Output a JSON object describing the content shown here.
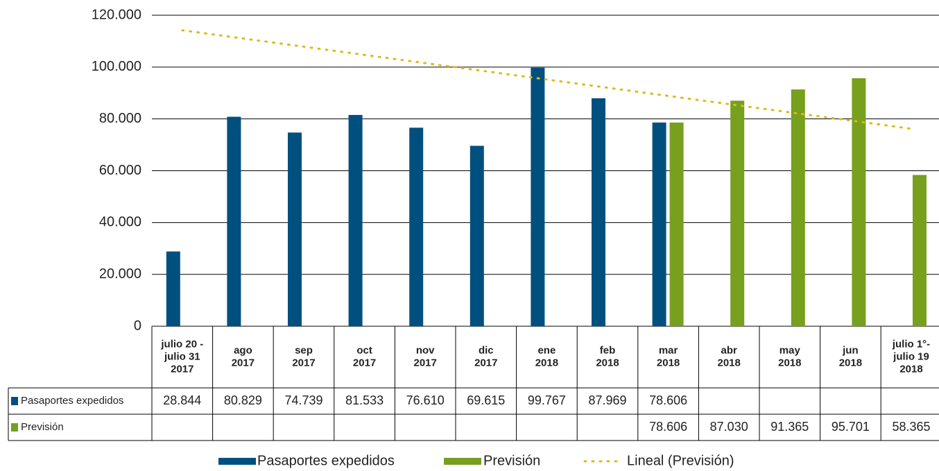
{
  "chart_data": {
    "type": "bar",
    "categories": [
      [
        "julio 20 -",
        "julio 31",
        "2017"
      ],
      [
        "ago",
        "2017"
      ],
      [
        "sep",
        "2017"
      ],
      [
        "oct",
        "2017"
      ],
      [
        "nov",
        "2017"
      ],
      [
        "dic",
        "2017"
      ],
      [
        "ene",
        "2018"
      ],
      [
        "feb",
        "2018"
      ],
      [
        "mar",
        "2018"
      ],
      [
        "abr",
        "2018"
      ],
      [
        "may",
        "2018"
      ],
      [
        "jun",
        "2018"
      ],
      [
        "julio 1°-",
        "julio 19",
        "2018"
      ]
    ],
    "series": [
      {
        "name": "Pasaportes expedidos",
        "color": "#00507f",
        "values": [
          28844,
          80829,
          74739,
          81533,
          76610,
          69615,
          99767,
          87969,
          78606,
          null,
          null,
          null,
          null
        ],
        "value_labels": [
          "28.844",
          "80.829",
          "74.739",
          "81.533",
          "76.610",
          "69.615",
          "99.767",
          "87.969",
          "78.606",
          null,
          null,
          null,
          null
        ]
      },
      {
        "name": "Previsión",
        "color": "#77a01e",
        "values": [
          null,
          null,
          null,
          null,
          null,
          null,
          null,
          null,
          78606,
          87030,
          91365,
          95701,
          58365
        ],
        "value_labels": [
          null,
          null,
          null,
          null,
          null,
          null,
          null,
          null,
          "78.606",
          "87.030",
          "91.365",
          "95.701",
          "58.365"
        ]
      }
    ],
    "trendline": {
      "name": "Lineal (Previsión)",
      "color": "#e2b719",
      "start": 114200,
      "end": 76200
    },
    "ylim": [
      0,
      120000
    ],
    "yticks": [
      0,
      {
        "value": 20000,
        "label": "20.000"
      },
      {
        "value": 40000,
        "label": "40.000"
      },
      {
        "value": 60000,
        "label": "60.000"
      },
      {
        "value": 80000,
        "label": "80.000"
      },
      {
        "value": 100000,
        "label": "100.000"
      },
      {
        "value": 120000,
        "label": "120.000"
      }
    ],
    "grid": true,
    "legend": "bottom"
  }
}
